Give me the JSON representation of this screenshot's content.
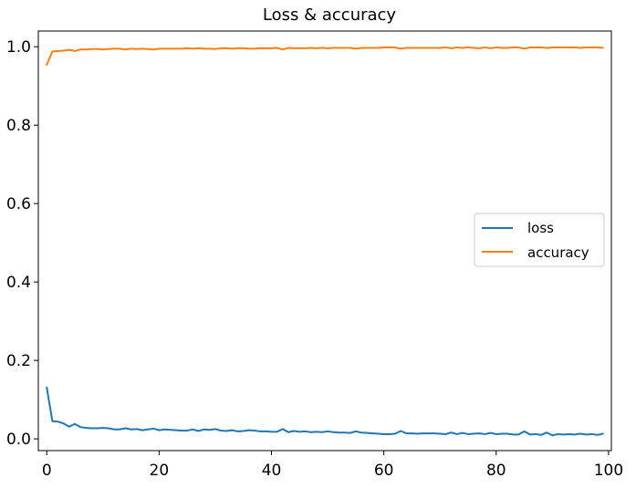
{
  "chart_data": {
    "type": "line",
    "title": "Loss & accuracy",
    "xlabel": "",
    "ylabel": "",
    "xlim": [
      -1.5,
      100.5
    ],
    "ylim": [
      -0.03,
      1.04
    ],
    "x_ticks": [
      0,
      20,
      40,
      60,
      80,
      100
    ],
    "x_tick_labels": [
      "0",
      "20",
      "40",
      "60",
      "80",
      "100"
    ],
    "y_ticks": [
      0.0,
      0.2,
      0.4,
      0.6,
      0.8,
      1.0
    ],
    "y_tick_labels": [
      "0.0",
      "0.2",
      "0.4",
      "0.6",
      "0.8",
      "1.0"
    ],
    "grid": false,
    "legend_position": "center-right",
    "series": [
      {
        "name": "loss",
        "color": "#1f77b4",
        "values": [
          0.131,
          0.045,
          0.044,
          0.039,
          0.031,
          0.038,
          0.03,
          0.028,
          0.027,
          0.027,
          0.028,
          0.027,
          0.024,
          0.024,
          0.027,
          0.024,
          0.025,
          0.022,
          0.024,
          0.026,
          0.022,
          0.024,
          0.023,
          0.022,
          0.021,
          0.021,
          0.024,
          0.02,
          0.024,
          0.023,
          0.025,
          0.021,
          0.02,
          0.022,
          0.019,
          0.02,
          0.022,
          0.021,
          0.019,
          0.019,
          0.018,
          0.018,
          0.025,
          0.017,
          0.02,
          0.018,
          0.019,
          0.017,
          0.018,
          0.017,
          0.019,
          0.017,
          0.016,
          0.016,
          0.015,
          0.019,
          0.016,
          0.015,
          0.014,
          0.013,
          0.012,
          0.012,
          0.013,
          0.02,
          0.014,
          0.014,
          0.013,
          0.014,
          0.014,
          0.014,
          0.013,
          0.012,
          0.016,
          0.012,
          0.015,
          0.012,
          0.013,
          0.014,
          0.012,
          0.015,
          0.012,
          0.013,
          0.013,
          0.011,
          0.011,
          0.019,
          0.011,
          0.012,
          0.01,
          0.016,
          0.009,
          0.012,
          0.011,
          0.012,
          0.011,
          0.013,
          0.011,
          0.012,
          0.01,
          0.013
        ]
      },
      {
        "name": "accuracy",
        "color": "#ff7f0e",
        "values": [
          0.954,
          0.988,
          0.989,
          0.99,
          0.992,
          0.989,
          0.993,
          0.993,
          0.994,
          0.994,
          0.993,
          0.994,
          0.995,
          0.995,
          0.993,
          0.995,
          0.994,
          0.995,
          0.994,
          0.993,
          0.995,
          0.995,
          0.995,
          0.995,
          0.995,
          0.996,
          0.995,
          0.996,
          0.995,
          0.995,
          0.994,
          0.996,
          0.996,
          0.995,
          0.996,
          0.996,
          0.995,
          0.995,
          0.996,
          0.996,
          0.996,
          0.997,
          0.993,
          0.997,
          0.996,
          0.996,
          0.996,
          0.997,
          0.996,
          0.997,
          0.996,
          0.997,
          0.997,
          0.997,
          0.997,
          0.995,
          0.997,
          0.997,
          0.997,
          0.997,
          0.998,
          0.998,
          0.998,
          0.995,
          0.997,
          0.997,
          0.997,
          0.997,
          0.997,
          0.997,
          0.997,
          0.998,
          0.996,
          0.998,
          0.997,
          0.998,
          0.997,
          0.996,
          0.998,
          0.996,
          0.998,
          0.997,
          0.997,
          0.998,
          0.998,
          0.995,
          0.998,
          0.998,
          0.998,
          0.997,
          0.998,
          0.998,
          0.998,
          0.998,
          0.998,
          0.997,
          0.998,
          0.998,
          0.998,
          0.997
        ]
      }
    ]
  }
}
